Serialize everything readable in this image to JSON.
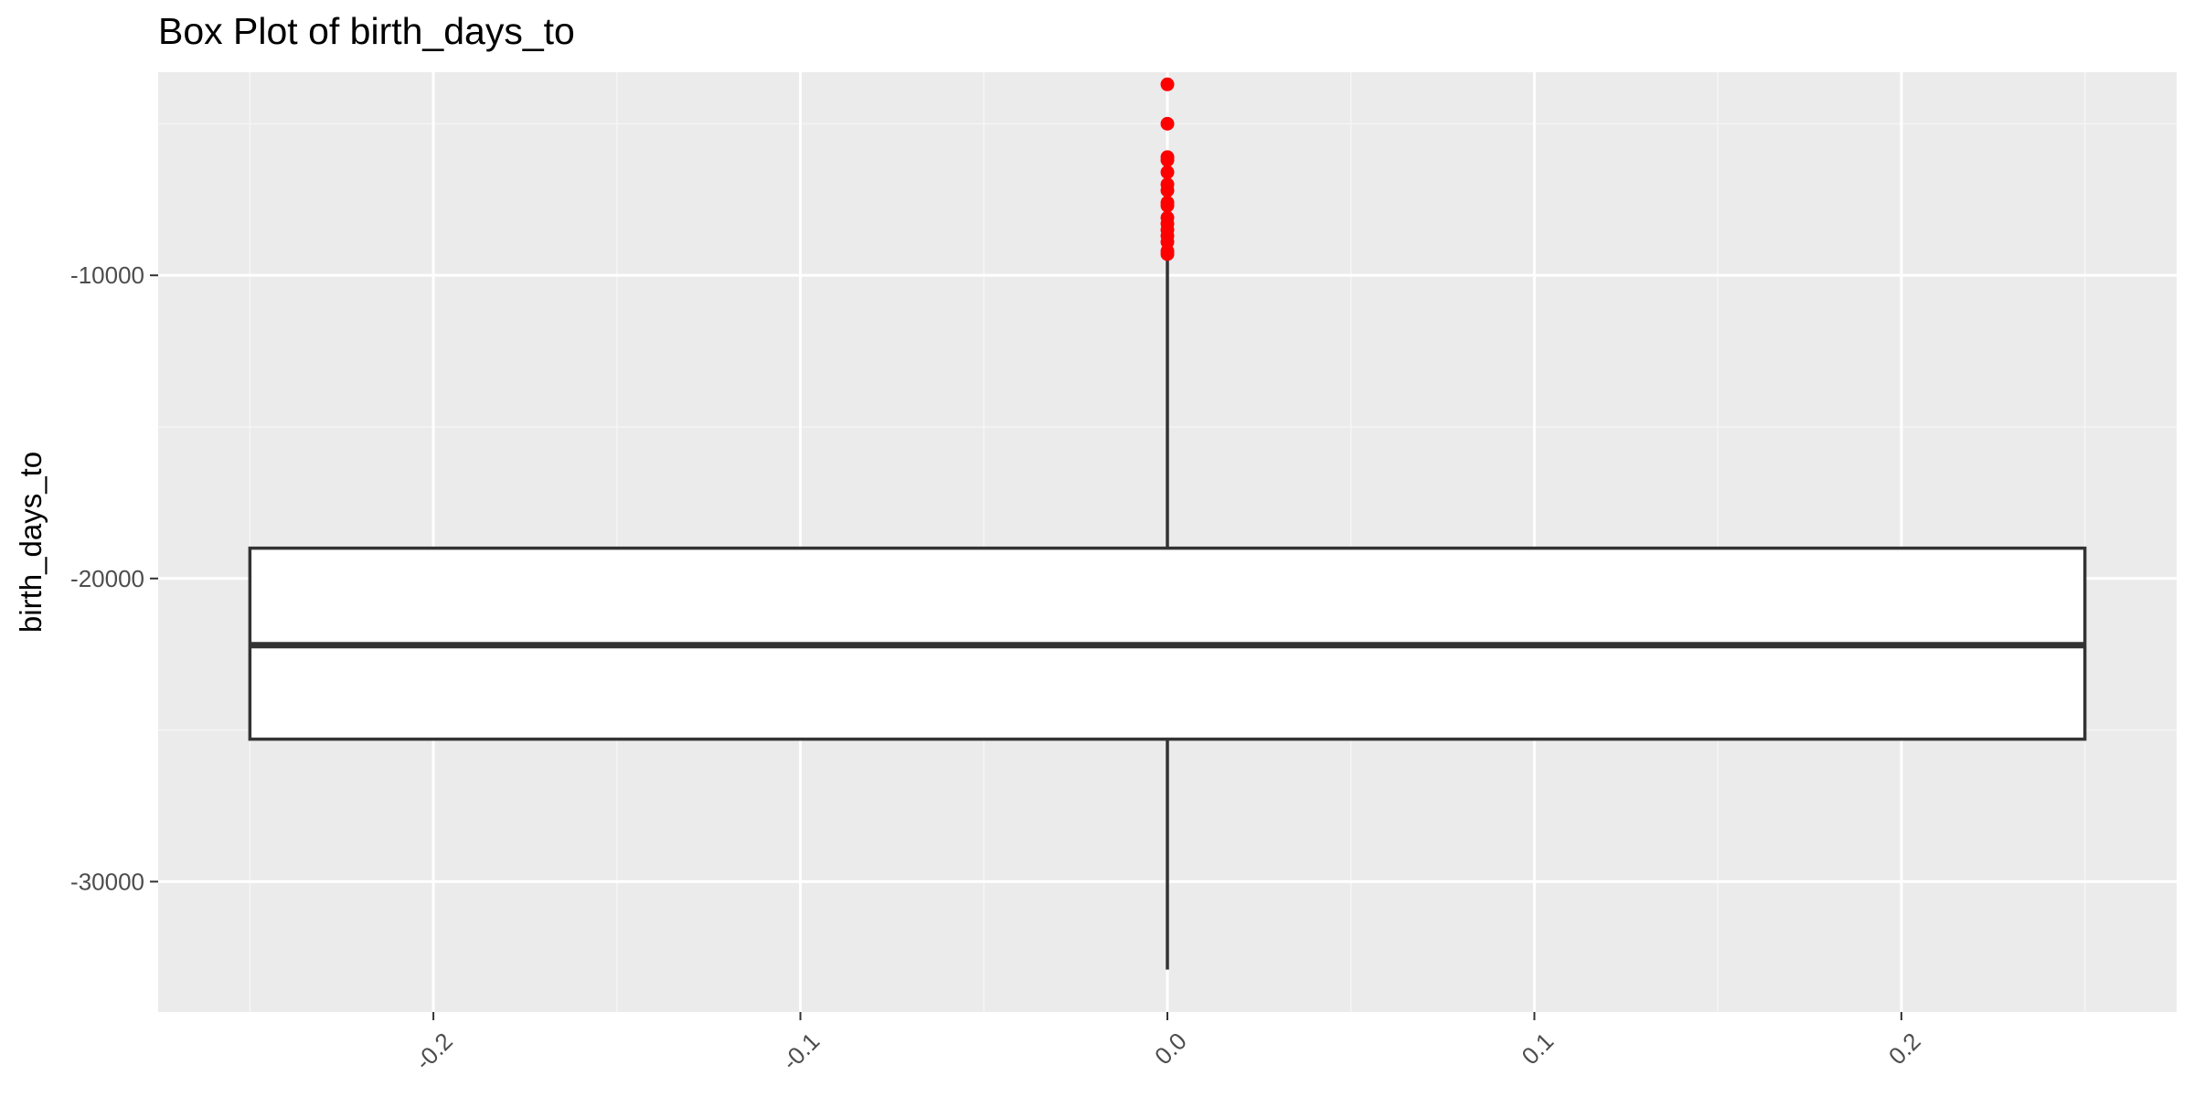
{
  "chart_data": {
    "type": "boxplot",
    "title": "Box Plot of birth_days_to",
    "xlabel": "",
    "ylabel": "birth_days_to",
    "xlim": [
      -0.275,
      0.275
    ],
    "ylim": [
      -34300,
      -3300
    ],
    "x_ticks": [
      {
        "value": -0.2,
        "label": "-0.2"
      },
      {
        "value": -0.1,
        "label": "-0.1"
      },
      {
        "value": 0.0,
        "label": "0.0"
      },
      {
        "value": 0.1,
        "label": "0.1"
      },
      {
        "value": 0.2,
        "label": "0.2"
      }
    ],
    "x_minor_ticks": [
      -0.25,
      -0.15,
      -0.05,
      0.05,
      0.15,
      0.25
    ],
    "y_ticks": [
      {
        "value": -10000,
        "label": "-10000"
      },
      {
        "value": -20000,
        "label": "-20000"
      },
      {
        "value": -30000,
        "label": "-30000"
      }
    ],
    "y_minor_ticks": [
      -5000,
      -15000,
      -25000
    ],
    "box": {
      "x": 0.0,
      "x_min": -0.25,
      "x_max": 0.25,
      "q1": -25300,
      "median": -22200,
      "q3": -19000,
      "whisker_low": -32900,
      "whisker_high": -9400
    },
    "outliers": [
      -3700,
      -5000,
      -6100,
      -6200,
      -6600,
      -7000,
      -7200,
      -7600,
      -7700,
      -8100,
      -8300,
      -8500,
      -8700,
      -8900,
      -9200,
      -9300
    ],
    "colors": {
      "panel_background": "#ebebeb",
      "grid_major": "#ffffff",
      "grid_minor": "#f5f5f5",
      "box_fill": "#ffffff",
      "box_line": "#333333",
      "outlier": "#ff0000",
      "tick_label": "#4d4d4d",
      "tick_mark": "#333333"
    }
  }
}
